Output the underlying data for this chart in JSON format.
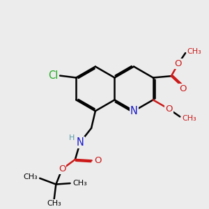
{
  "bg_color": "#ececec",
  "bond_color": "#000000",
  "bond_width": 1.8,
  "dbo": 0.07,
  "atom_colors": {
    "C": "#000000",
    "N": "#1a1acc",
    "O": "#cc1a1a",
    "Cl": "#22aa22",
    "H": "#5599aa"
  },
  "font_size": 9.5,
  "fig_size": [
    3.0,
    3.0
  ],
  "dpi": 100,
  "xlim": [
    0,
    10
  ],
  "ylim": [
    0,
    10
  ]
}
